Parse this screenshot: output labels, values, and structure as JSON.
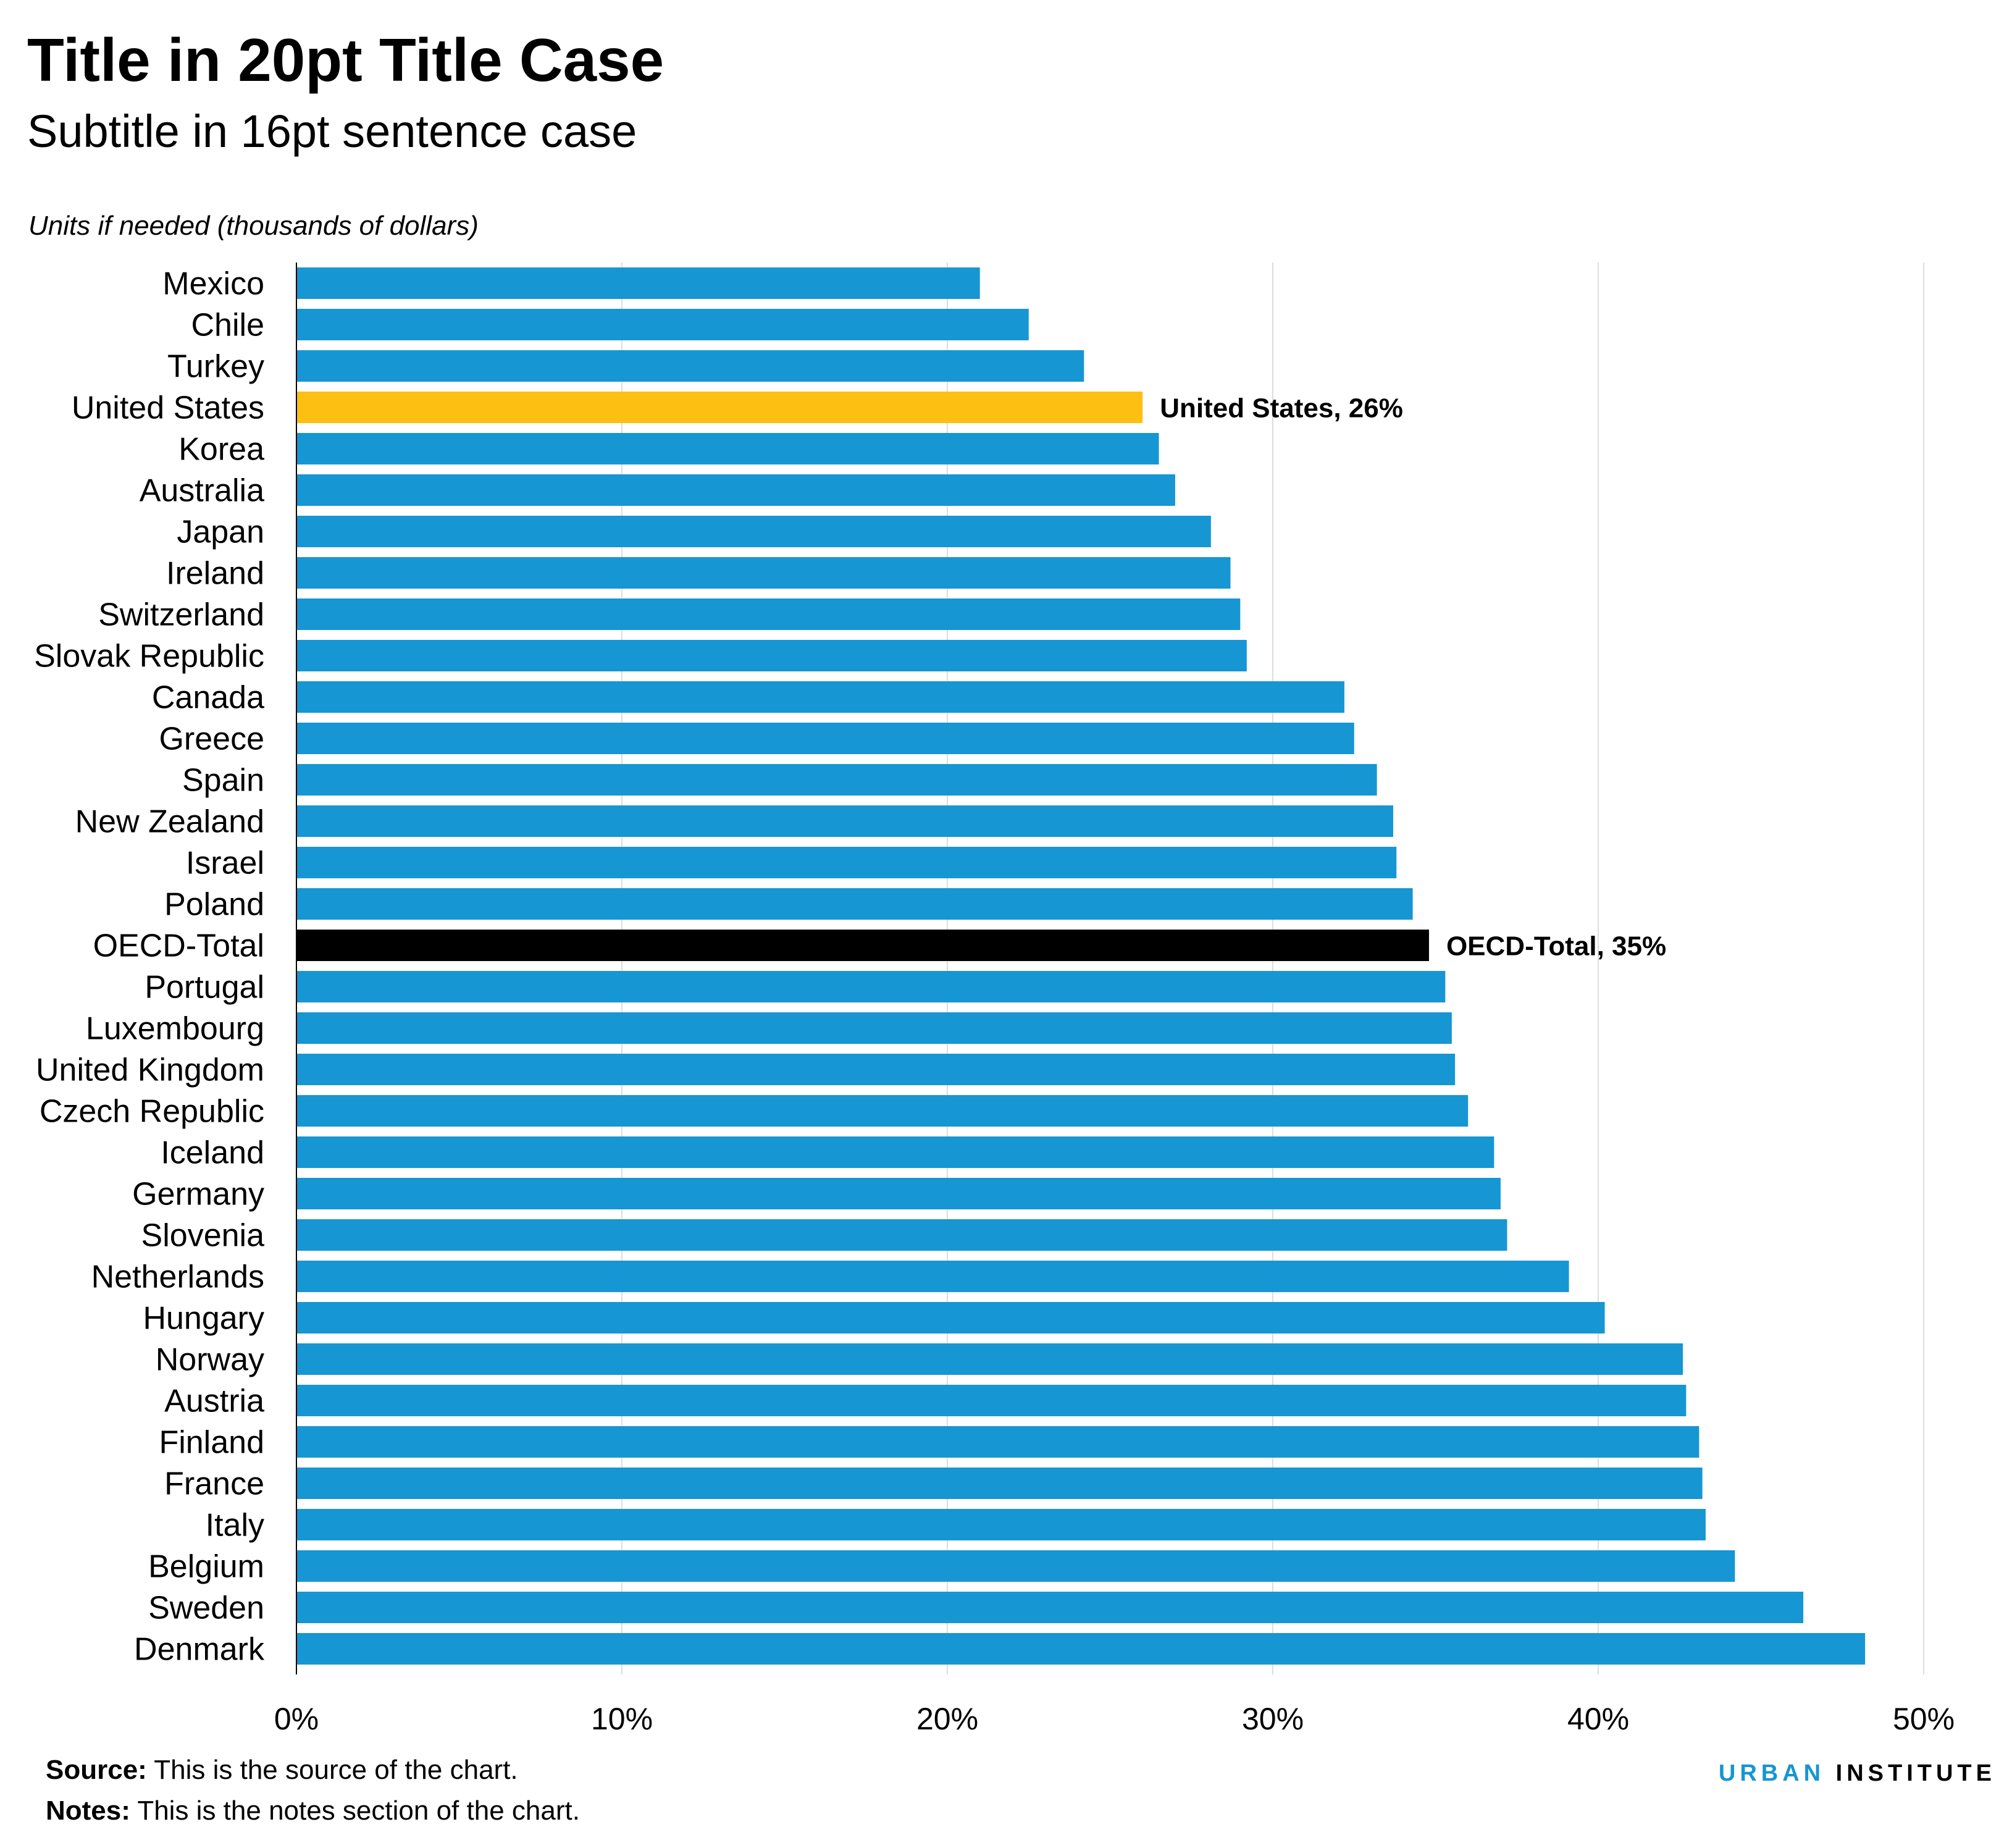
{
  "chart_data": {
    "type": "bar",
    "orientation": "horizontal",
    "title": "Title in 20pt Title Case",
    "subtitle": "Subtitle in 16pt sentence case",
    "units_label": "Units if needed (thousands of dollars)",
    "categories": [
      "Mexico",
      "Chile",
      "Turkey",
      "United States",
      "Korea",
      "Australia",
      "Japan",
      "Ireland",
      "Switzerland",
      "Slovak Republic",
      "Canada",
      "Greece",
      "Spain",
      "New Zealand",
      "Israel",
      "Poland",
      "OECD-Total",
      "Portugal",
      "Luxembourg",
      "United Kingdom",
      "Czech Republic",
      "Iceland",
      "Germany",
      "Slovenia",
      "Netherlands",
      "Hungary",
      "Norway",
      "Austria",
      "Finland",
      "France",
      "Italy",
      "Belgium",
      "Sweden",
      "Denmark"
    ],
    "values": [
      21.0,
      22.5,
      24.2,
      26.0,
      26.5,
      27.0,
      28.1,
      28.7,
      29.0,
      29.2,
      32.2,
      32.5,
      33.2,
      33.7,
      33.8,
      34.3,
      34.8,
      35.3,
      35.5,
      35.6,
      36.0,
      36.8,
      37.0,
      37.2,
      39.1,
      40.2,
      42.6,
      42.7,
      43.1,
      43.2,
      43.3,
      44.2,
      46.3,
      48.2
    ],
    "highlights": [
      {
        "category": "United States",
        "color": "#fdbf11",
        "label": "United States, 26%"
      },
      {
        "category": "OECD-Total",
        "color": "#000000",
        "label": "OECD-Total, 35%"
      }
    ],
    "bar_color": "#1696d2",
    "xlim": [
      0,
      50
    ],
    "xticks": [
      0,
      10,
      20,
      30,
      40,
      50
    ],
    "xtick_labels": [
      "0%",
      "10%",
      "20%",
      "30%",
      "40%",
      "50%"
    ],
    "grid": "vertical",
    "legend": "none"
  },
  "footer": {
    "source_key": "Source:",
    "source_text": " This is the source of the chart.",
    "notes_key": "Notes:",
    "notes_text": " This is the notes section of the chart."
  },
  "brand": {
    "urban": "URBAN",
    "institute": " INSTITUTE",
    "accent_color": "#1696d2"
  }
}
